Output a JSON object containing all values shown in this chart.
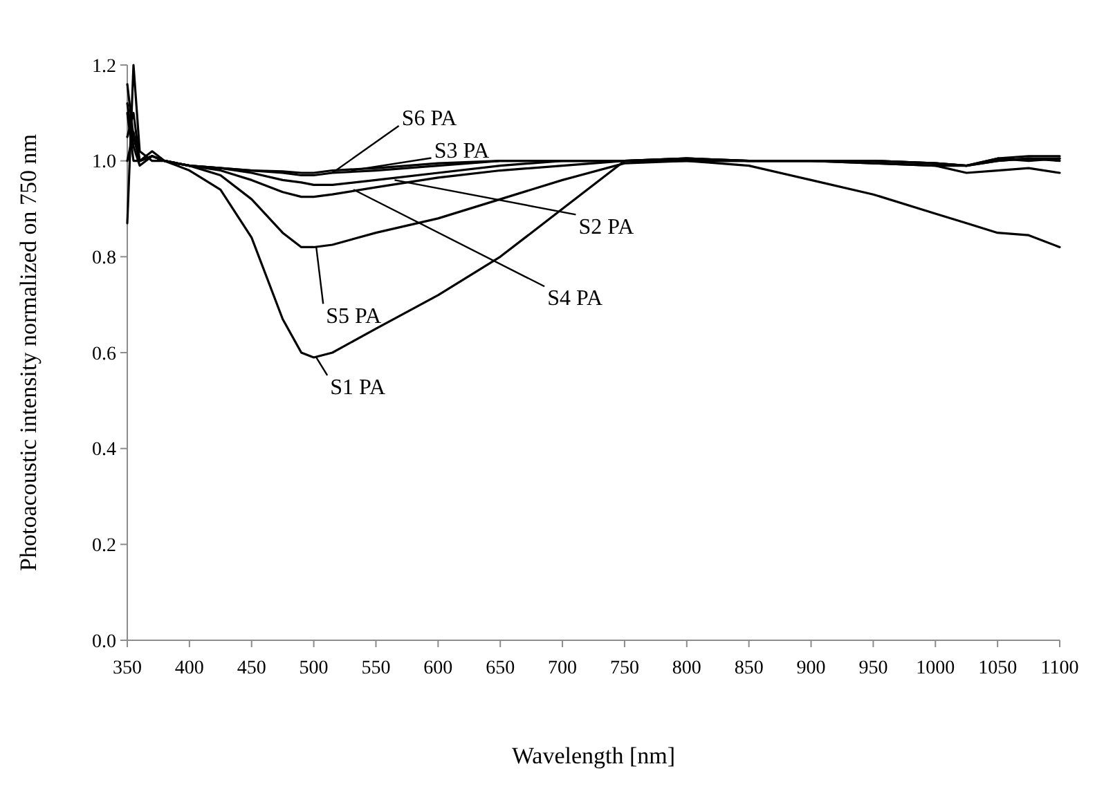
{
  "chart_data": {
    "type": "line",
    "xlabel": "Wavelength [nm]",
    "ylabel": "Photoacoustic intensity normalized on 750 nm",
    "x": [
      350,
      355,
      360,
      370,
      380,
      400,
      425,
      450,
      475,
      490,
      500,
      515,
      550,
      600,
      650,
      700,
      750,
      800,
      850,
      900,
      950,
      1000,
      1025,
      1050,
      1075,
      1100
    ],
    "series": [
      {
        "color": "#000000",
        "values": [
          1.16,
          1.05,
          1.0,
          1.02,
          1.0,
          0.98,
          0.94,
          0.84,
          0.67,
          0.6,
          0.59,
          0.6,
          0.65,
          0.72,
          0.8,
          0.9,
          1.0,
          1.0,
          0.99,
          0.96,
          0.93,
          0.89,
          0.87,
          0.85,
          0.845,
          0.82
        ]
      },
      {
        "color": "#000000",
        "values": [
          0.87,
          1.2,
          1.02,
          1.0,
          1.0,
          0.99,
          0.985,
          0.975,
          0.96,
          0.955,
          0.95,
          0.95,
          0.96,
          0.975,
          0.99,
          1.0,
          1.0,
          1.005,
          1.0,
          1.0,
          1.0,
          0.995,
          0.99,
          1.0,
          1.005,
          1.0
        ]
      },
      {
        "color": "#000000",
        "values": [
          1.12,
          1.03,
          0.99,
          1.01,
          1.0,
          0.99,
          0.985,
          0.98,
          0.975,
          0.97,
          0.97,
          0.975,
          0.98,
          0.99,
          1.0,
          1.0,
          1.0,
          1.005,
          1.0,
          1.0,
          1.0,
          0.995,
          0.99,
          1.005,
          1.0,
          1.005
        ]
      },
      {
        "color": "#000000",
        "values": [
          1.05,
          1.1,
          1.0,
          1.01,
          1.0,
          0.99,
          0.98,
          0.96,
          0.935,
          0.925,
          0.925,
          0.93,
          0.945,
          0.965,
          0.98,
          0.99,
          1.0,
          1.0,
          1.0,
          1.0,
          0.995,
          0.99,
          0.975,
          0.98,
          0.985,
          0.975
        ]
      },
      {
        "color": "#000000",
        "values": [
          1.1,
          1.0,
          1.0,
          1.01,
          1.0,
          0.99,
          0.97,
          0.92,
          0.85,
          0.82,
          0.82,
          0.825,
          0.85,
          0.88,
          0.92,
          0.96,
          0.995,
          1.0,
          1.0,
          1.0,
          0.995,
          0.99,
          0.99,
          1.0,
          1.005,
          1.005
        ]
      },
      {
        "color": "#000000",
        "values": [
          1.0,
          1.06,
          1.0,
          1.01,
          1.0,
          0.99,
          0.985,
          0.98,
          0.978,
          0.975,
          0.975,
          0.98,
          0.985,
          0.995,
          1.0,
          1.0,
          1.0,
          1.005,
          1.0,
          1.0,
          1.0,
          0.995,
          0.99,
          1.005,
          1.01,
          1.01
        ]
      }
    ],
    "xlim": [
      350,
      1100
    ],
    "xticks": [
      350,
      400,
      450,
      500,
      550,
      600,
      650,
      700,
      750,
      800,
      850,
      900,
      950,
      1000,
      1050,
      1100
    ],
    "ylim": [
      0,
      1.2
    ],
    "yticks": [
      {
        "value": 0,
        "label": "0.0"
      },
      {
        "value": 0.2,
        "label": "0.2"
      },
      {
        "value": 0.4,
        "label": "0.4"
      },
      {
        "value": 0.6,
        "label": "0.6"
      },
      {
        "value": 0.8,
        "label": "0.8"
      },
      {
        "value": 1,
        "label": "1.0"
      },
      {
        "value": 1.2,
        "label": "1.2"
      }
    ],
    "grid": false,
    "marker": "none",
    "line_style": "solid",
    "annotations": [
      {
        "text": "S6 PA",
        "x": 515,
        "y": 0.975
      },
      {
        "text": "S3 PA",
        "x": 530,
        "y": 0.98
      },
      {
        "text": "S2 PA",
        "x": 565,
        "y": 0.96
      },
      {
        "text": "S4 PA",
        "x": 532,
        "y": 0.94
      },
      {
        "text": "S5 PA",
        "x": 502,
        "y": 0.82
      },
      {
        "text": "S1 PA",
        "x": 502,
        "y": 0.59
      }
    ]
  }
}
